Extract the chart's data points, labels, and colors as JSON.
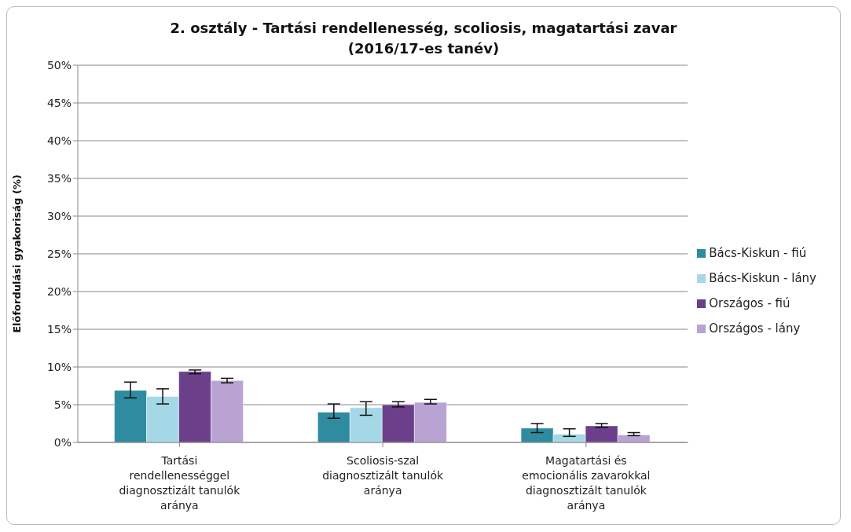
{
  "chart_data": {
    "type": "bar",
    "title": "2. osztály - Tartási rendellenesség, scoliosis, magatartási zavar\n(2016/17-es tanév)",
    "ylabel": "Előfordulási gyakoriság (%)",
    "categories": [
      "Tartási rendellenességgel diagnosztizált tanulók aránya",
      "Scoliosis-szal diagnosztizált tanulók aránya",
      "Magatartási és emocionális zavarokkal diagnosztizált tanulók aránya"
    ],
    "series": [
      {
        "name": "Bács-Kiskun - fiú",
        "color": "#2e8ba0",
        "values": [
          6.9,
          4.0,
          1.9
        ],
        "errors": [
          [
            5.9,
            8.0
          ],
          [
            3.2,
            5.1
          ],
          [
            1.3,
            2.5
          ]
        ]
      },
      {
        "name": "Bács-Kiskun - lány",
        "color": "#a5d8e6",
        "values": [
          6.1,
          4.6,
          1.1
        ],
        "errors": [
          [
            5.1,
            7.1
          ],
          [
            3.6,
            5.4
          ],
          [
            0.8,
            1.8
          ]
        ]
      },
      {
        "name": "Országos - fiú",
        "color": "#6b3f8a",
        "values": [
          9.4,
          5.0,
          2.2
        ],
        "errors": [
          [
            9.1,
            9.6
          ],
          [
            4.7,
            5.4
          ],
          [
            2.0,
            2.5
          ]
        ]
      },
      {
        "name": "Országos - lány",
        "color": "#b9a3d3",
        "values": [
          8.2,
          5.3,
          1.0
        ],
        "errors": [
          [
            7.9,
            8.5
          ],
          [
            5.1,
            5.7
          ],
          [
            0.9,
            1.3
          ]
        ]
      }
    ],
    "ylim": [
      0,
      50
    ],
    "yticks": [
      {
        "value": 0,
        "label": "0%"
      },
      {
        "value": 5,
        "label": "5%"
      },
      {
        "value": 10,
        "label": "10%"
      },
      {
        "value": 15,
        "label": "15%"
      },
      {
        "value": 20,
        "label": "20%"
      },
      {
        "value": 25,
        "label": "25%"
      },
      {
        "value": 30,
        "label": "30%"
      },
      {
        "value": 35,
        "label": "35%"
      },
      {
        "value": 40,
        "label": "40%"
      },
      {
        "value": 45,
        "label": "45%"
      },
      {
        "value": 50,
        "label": "50%"
      }
    ],
    "grid": "y",
    "legend": "right"
  }
}
